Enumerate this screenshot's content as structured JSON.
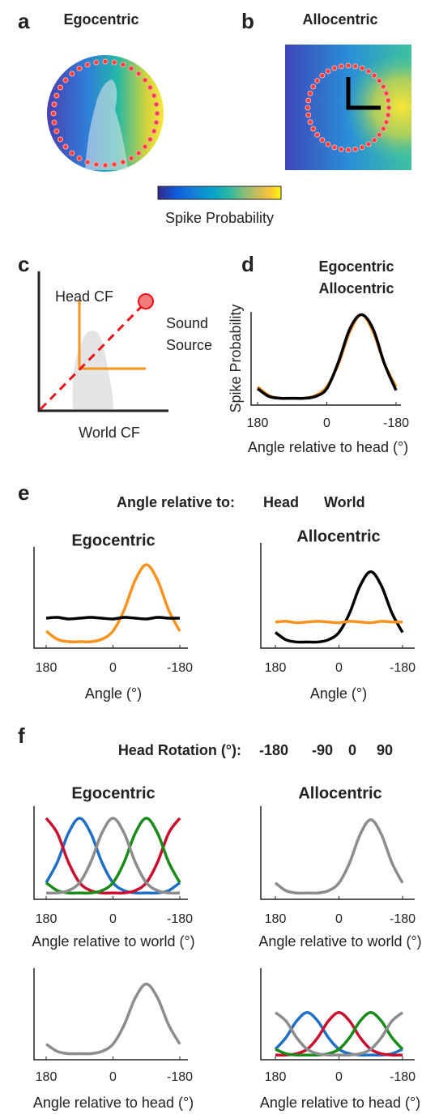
{
  "figure": {
    "a": {
      "label": "a",
      "title": "Egocentric"
    },
    "b": {
      "label": "b",
      "title": "Allocentric"
    },
    "colorbar_label": "Spike Probability",
    "c": {
      "label": "c",
      "head": "Head CF",
      "source": [
        "Sound",
        "Source"
      ],
      "world": "World CF"
    },
    "d": {
      "label": "d"
    },
    "e": {
      "label": "e",
      "legend_title": "Angle relative to:",
      "legend": [
        {
          "name": "Head",
          "color": "#f7931e"
        },
        {
          "name": "World",
          "color": "#000000"
        }
      ]
    },
    "f": {
      "label": "f",
      "legend_title": "Head Rotation (°):",
      "legend": [
        {
          "name": "-180",
          "color": "#1f6fc5"
        },
        {
          "name": "-90",
          "color": "#c8102e"
        },
        {
          "name": "0",
          "color": "#1a8a1a"
        },
        {
          "name": "90",
          "color": "#8c8c8c"
        }
      ]
    }
  },
  "chart_data": [
    {
      "type": "line",
      "ylabel": "Spike Probability",
      "xlabel": "Angle relative to head (°)",
      "x": [
        180,
        150,
        120,
        90,
        60,
        30,
        0,
        -30,
        -60,
        -90,
        -120,
        -150,
        -180
      ],
      "xlim": [
        180,
        -180
      ],
      "xticks": [
        180,
        0,
        -180
      ],
      "ylim": [
        0,
        1.05
      ],
      "series": [
        {
          "name": "Egocentric",
          "color": "#f7931e",
          "values": [
            0.18,
            0.08,
            0.05,
            0.05,
            0.05,
            0.08,
            0.18,
            0.44,
            0.81,
            1.0,
            0.81,
            0.44,
            0.18
          ]
        },
        {
          "name": "Allocentric",
          "color": "#000000",
          "values": [
            0.16,
            0.07,
            0.05,
            0.05,
            0.05,
            0.07,
            0.16,
            0.46,
            0.84,
            1.0,
            0.84,
            0.44,
            0.14
          ]
        }
      ]
    },
    {
      "type": "line",
      "title": "Egocentric",
      "xlabel": "Angle (°)",
      "x": [
        180,
        150,
        120,
        90,
        60,
        30,
        0,
        -30,
        -60,
        -90,
        -120,
        -150,
        -180
      ],
      "xlim": [
        180,
        -180
      ],
      "xticks": [
        180,
        0,
        -180
      ],
      "ylim": [
        0,
        1.05
      ],
      "series": [
        {
          "color": "#f7931e",
          "values": [
            0.18,
            0.08,
            0.05,
            0.05,
            0.05,
            0.08,
            0.18,
            0.44,
            0.81,
            1.0,
            0.81,
            0.44,
            0.18
          ]
        },
        {
          "color": "#000000",
          "values": [
            0.34,
            0.35,
            0.33,
            0.34,
            0.35,
            0.34,
            0.33,
            0.35,
            0.34,
            0.33,
            0.35,
            0.34,
            0.34
          ]
        }
      ]
    },
    {
      "type": "line",
      "title": "Allocentric",
      "xlabel": "Angle (°)",
      "x": [
        180,
        150,
        120,
        90,
        60,
        30,
        0,
        -30,
        -60,
        -90,
        -120,
        -150,
        -180
      ],
      "xlim": [
        180,
        -180
      ],
      "xticks": [
        180,
        0,
        -180
      ],
      "ylim": [
        0,
        1.05
      ],
      "series": [
        {
          "color": "#000000",
          "values": [
            0.18,
            0.08,
            0.05,
            0.05,
            0.05,
            0.08,
            0.18,
            0.44,
            0.81,
            1.0,
            0.81,
            0.44,
            0.18
          ]
        },
        {
          "color": "#f7931e",
          "values": [
            0.32,
            0.33,
            0.31,
            0.32,
            0.33,
            0.32,
            0.31,
            0.33,
            0.32,
            0.31,
            0.33,
            0.32,
            0.32
          ]
        }
      ]
    },
    {
      "type": "line",
      "title": "Egocentric",
      "xlabel": "Angle relative to world (°)",
      "x": [
        180,
        150,
        120,
        90,
        60,
        30,
        0,
        -30,
        -60,
        -90,
        -120,
        -150,
        -180
      ],
      "xlim": [
        180,
        -180
      ],
      "xticks": [
        180,
        0,
        -180
      ],
      "ylim": [
        0,
        1.05
      ],
      "series": [
        {
          "color": "#1f6fc5",
          "values": [
            0.18,
            0.44,
            0.81,
            1.0,
            0.81,
            0.44,
            0.18,
            0.08,
            0.05,
            0.05,
            0.05,
            0.08,
            0.18
          ]
        },
        {
          "color": "#c8102e",
          "values": [
            1.0,
            0.81,
            0.44,
            0.18,
            0.08,
            0.05,
            0.05,
            0.05,
            0.08,
            0.18,
            0.44,
            0.81,
            1.0
          ]
        },
        {
          "color": "#1a8a1a",
          "values": [
            0.18,
            0.08,
            0.05,
            0.05,
            0.05,
            0.08,
            0.18,
            0.44,
            0.81,
            1.0,
            0.81,
            0.44,
            0.18
          ]
        },
        {
          "color": "#8c8c8c",
          "values": [
            0.05,
            0.05,
            0.08,
            0.18,
            0.44,
            0.81,
            1.0,
            0.81,
            0.44,
            0.18,
            0.08,
            0.05,
            0.05
          ]
        }
      ]
    },
    {
      "type": "line",
      "title": "Allocentric",
      "xlabel": "Angle relative to world (°)",
      "x": [
        180,
        150,
        120,
        90,
        60,
        30,
        0,
        -30,
        -60,
        -90,
        -120,
        -150,
        -180
      ],
      "xlim": [
        180,
        -180
      ],
      "xticks": [
        180,
        0,
        -180
      ],
      "ylim": [
        0,
        1.05
      ],
      "series": [
        {
          "color": "#8c8c8c",
          "values": [
            0.18,
            0.08,
            0.05,
            0.05,
            0.05,
            0.08,
            0.18,
            0.44,
            0.81,
            1.0,
            0.81,
            0.44,
            0.18
          ]
        }
      ]
    },
    {
      "type": "line",
      "xlabel": "Angle relative to head (°)",
      "x": [
        180,
        150,
        120,
        90,
        60,
        30,
        0,
        -30,
        -60,
        -90,
        -120,
        -150,
        -180
      ],
      "xlim": [
        180,
        -180
      ],
      "xticks": [
        180,
        0,
        -180
      ],
      "ylim": [
        0,
        1.05
      ],
      "series": [
        {
          "color": "#8c8c8c",
          "values": [
            0.18,
            0.08,
            0.05,
            0.05,
            0.05,
            0.08,
            0.18,
            0.44,
            0.81,
            1.0,
            0.81,
            0.44,
            0.18
          ]
        }
      ]
    },
    {
      "type": "line",
      "xlabel": "Angle relative to head (°)",
      "x": [
        180,
        150,
        120,
        90,
        60,
        30,
        0,
        -30,
        -60,
        -90,
        -120,
        -150,
        -180
      ],
      "xlim": [
        180,
        -180
      ],
      "xticks": [
        180,
        0,
        -180
      ],
      "ylim": [
        0,
        1.05
      ],
      "series": [
        {
          "color": "#1f6fc5",
          "values": [
            0.18,
            0.44,
            0.81,
            1.0,
            0.81,
            0.44,
            0.18,
            0.08,
            0.05,
            0.05,
            0.05,
            0.08,
            0.18
          ]
        },
        {
          "color": "#c8102e",
          "values": [
            0.05,
            0.05,
            0.08,
            0.18,
            0.44,
            0.81,
            1.0,
            0.81,
            0.44,
            0.18,
            0.08,
            0.05,
            0.05
          ]
        },
        {
          "color": "#1a8a1a",
          "values": [
            0.18,
            0.08,
            0.05,
            0.05,
            0.05,
            0.08,
            0.18,
            0.44,
            0.81,
            1.0,
            0.81,
            0.44,
            0.18
          ]
        },
        {
          "color": "#8c8c8c",
          "values": [
            1.0,
            0.81,
            0.44,
            0.18,
            0.08,
            0.05,
            0.05,
            0.05,
            0.08,
            0.18,
            0.44,
            0.81,
            1.0
          ]
        }
      ]
    }
  ]
}
